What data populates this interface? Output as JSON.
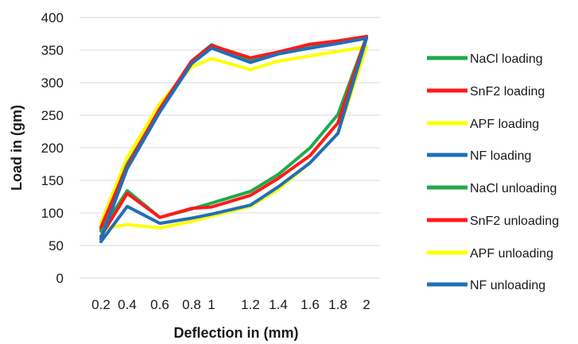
{
  "chart_data": {
    "type": "line",
    "title": "",
    "xlabel": "Deflection in (mm)",
    "ylabel": "Load in (gm)",
    "categories": [
      "0.2",
      "0.4",
      "0.6",
      "0.8",
      "1",
      "1.2",
      "1.4",
      "1.6",
      "1.8",
      "2"
    ],
    "ylim": [
      0,
      400
    ],
    "yticks": [
      0,
      50,
      100,
      150,
      200,
      250,
      300,
      350,
      400
    ],
    "grid": true,
    "legend_position": "right",
    "series": [
      {
        "name": "NaCl loading",
        "color": "#1faa4a",
        "values": [
          75,
          175,
          258,
          333,
          358,
          335,
          347,
          358,
          362,
          370
        ]
      },
      {
        "name": "SnF2 loading",
        "color": "#ff1a1a",
        "values": [
          78,
          172,
          260,
          333,
          357,
          338,
          347,
          359,
          364,
          371
        ]
      },
      {
        "name": "APF loading",
        "color": "#ffff00",
        "values": [
          85,
          185,
          268,
          324,
          337,
          320,
          333,
          341,
          348,
          355
        ]
      },
      {
        "name": "NF loading",
        "color": "#1f6fb8",
        "values": [
          60,
          168,
          255,
          329,
          353,
          331,
          344,
          353,
          360,
          368
        ]
      },
      {
        "name": "NaCl unloading",
        "color": "#1faa4a",
        "values": [
          72,
          134,
          93,
          106,
          115,
          133,
          159,
          200,
          251,
          370
        ]
      },
      {
        "name": "SnF2 unloading",
        "color": "#ff1a1a",
        "values": [
          64,
          130,
          93,
          107,
          109,
          127,
          153,
          188,
          238,
          371
        ]
      },
      {
        "name": "APF unloading",
        "color": "#ffff00",
        "values": [
          76,
          82,
          77,
          87,
          95,
          110,
          136,
          177,
          222,
          355
        ]
      },
      {
        "name": "NF unloading",
        "color": "#1f6fb8",
        "values": [
          56,
          110,
          84,
          92,
          98,
          112,
          140,
          177,
          222,
          368
        ]
      }
    ]
  }
}
